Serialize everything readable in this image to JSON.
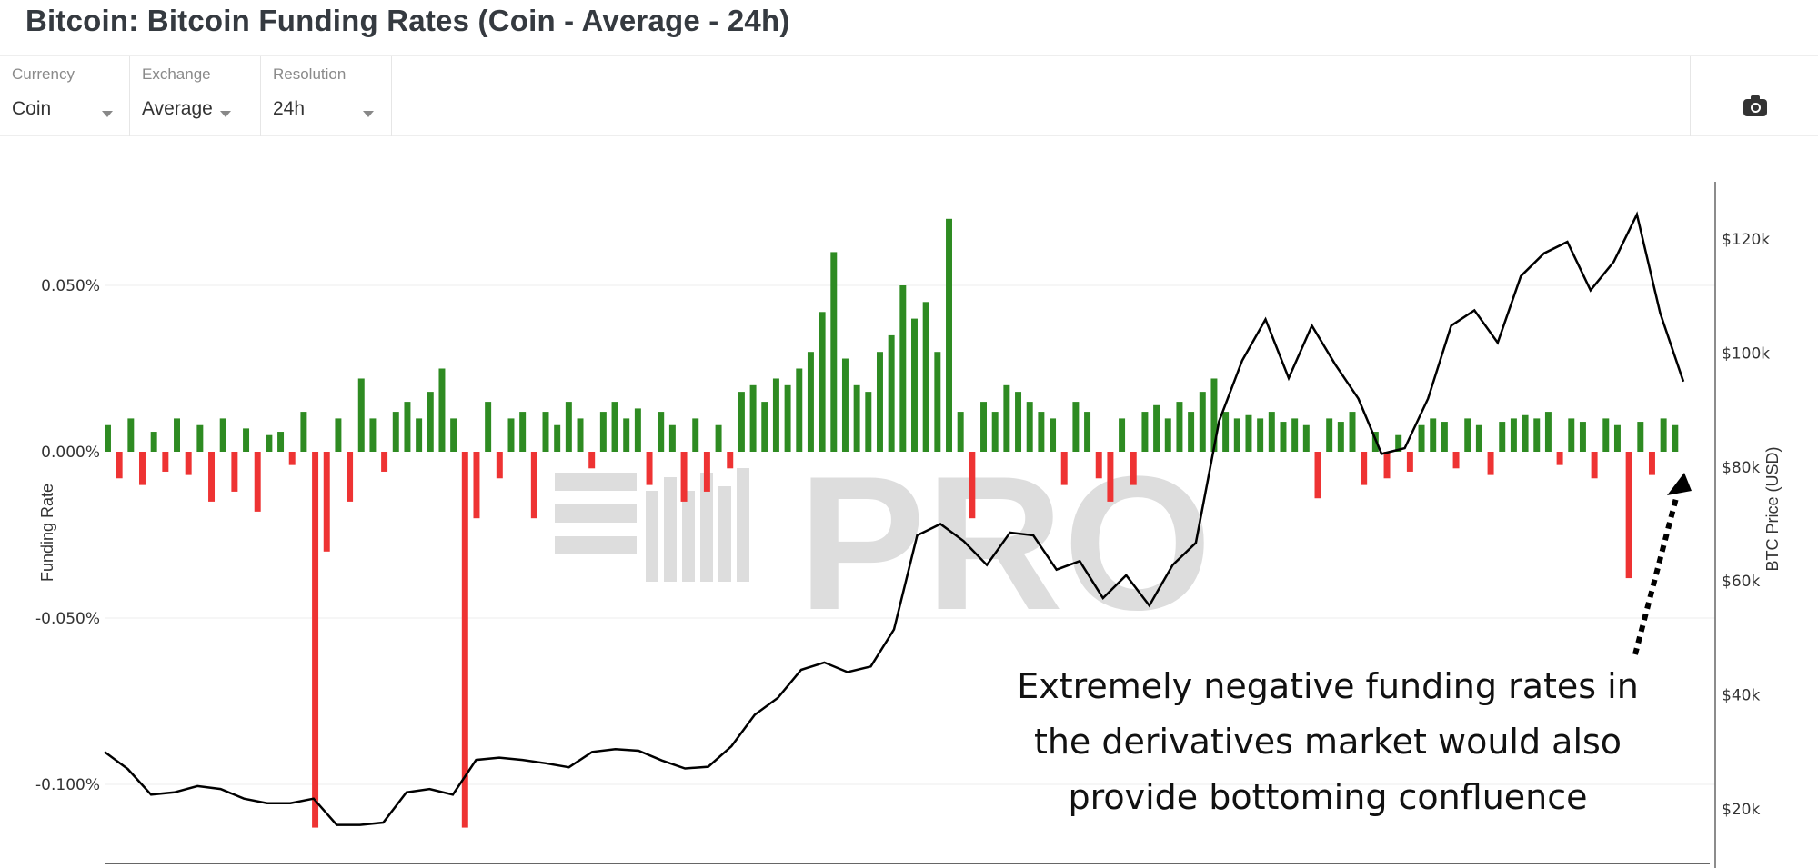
{
  "header": {
    "title": "Bitcoin: Bitcoin Funding Rates (Coin - Average - 24h)"
  },
  "controls": [
    {
      "label": "Currency",
      "value": "Coin"
    },
    {
      "label": "Exchange",
      "value": "Average"
    },
    {
      "label": "Resolution",
      "value": "24h"
    }
  ],
  "toolbar": {
    "screenshot_icon": "camera-icon"
  },
  "watermark": "PRO",
  "annotation": {
    "lines": [
      "Extremely negative funding rates in",
      "the derivatives market would also",
      "provide bottoming confluence"
    ]
  },
  "chart_data": {
    "type": "bar+line",
    "colors": {
      "positive": "#2e8b22",
      "negative": "#ee3333",
      "price": "#000000"
    },
    "left_axis": {
      "label": "Funding Rate",
      "ticks": [
        "0.050%",
        "0.000%",
        "-0.050%",
        "-0.100%"
      ],
      "tick_values": [
        0.05,
        0,
        -0.05,
        -0.1
      ],
      "range": [
        -0.12,
        0.075
      ]
    },
    "right_axis": {
      "label": "BTC Price (USD)",
      "ticks": [
        "$20k",
        "$40k",
        "$60k",
        "$80k",
        "$100k",
        "$120k"
      ],
      "tick_values": [
        20,
        40,
        60,
        80,
        100,
        120
      ],
      "range": [
        7,
        128
      ]
    },
    "grid": true,
    "series": [
      {
        "type": "bar",
        "unit": "%",
        "values": [
          0.008,
          -0.008,
          0.01,
          -0.01,
          0.006,
          -0.006,
          0.01,
          -0.007,
          0.008,
          -0.015,
          0.01,
          -0.012,
          0.007,
          -0.018,
          0.005,
          0.006,
          -0.004,
          0.012,
          -0.113,
          -0.03,
          0.01,
          -0.015,
          0.022,
          0.01,
          -0.006,
          0.012,
          0.015,
          0.01,
          0.018,
          0.025,
          0.01,
          -0.113,
          -0.02,
          0.015,
          -0.008,
          0.01,
          0.012,
          -0.02,
          0.012,
          0.008,
          0.015,
          0.01,
          -0.005,
          0.012,
          0.015,
          0.01,
          0.013,
          -0.01,
          0.012,
          0.008,
          -0.015,
          0.01,
          -0.012,
          0.008,
          -0.005,
          0.018,
          0.02,
          0.015,
          0.022,
          0.02,
          0.025,
          0.03,
          0.042,
          0.06,
          0.028,
          0.02,
          0.018,
          0.03,
          0.035,
          0.05,
          0.04,
          0.045,
          0.03,
          0.07,
          0.012,
          -0.02,
          0.015,
          0.012,
          0.02,
          0.018,
          0.015,
          0.012,
          0.01,
          -0.01,
          0.015,
          0.012,
          -0.008,
          -0.015,
          0.01,
          -0.01,
          0.012,
          0.014,
          0.01,
          0.015,
          0.012,
          0.018,
          0.022,
          0.012,
          0.01,
          0.011,
          0.01,
          0.012,
          0.009,
          0.01,
          0.008,
          -0.014,
          0.01,
          0.009,
          0.012,
          -0.01,
          0.006,
          -0.008,
          0.005,
          -0.006,
          0.008,
          0.01,
          0.009,
          -0.005,
          0.01,
          0.008,
          -0.007,
          0.009,
          0.01,
          0.011,
          0.01,
          0.012,
          -0.004,
          0.01,
          0.009,
          -0.008,
          0.01,
          0.008,
          -0.038,
          0.009,
          -0.007,
          0.01,
          0.008
        ]
      },
      {
        "type": "line",
        "unit": "USD k",
        "values": [
          30,
          27,
          22.5,
          22.9,
          24,
          23.5,
          21.8,
          21,
          21,
          21.8,
          17.2,
          17.2,
          17.6,
          22.9,
          23.5,
          22.5,
          28.6,
          29,
          28.6,
          28,
          27.3,
          30,
          30.5,
          30.2,
          28.5,
          27.1,
          27.4,
          31,
          36.5,
          39.5,
          44.4,
          45.7,
          44,
          45,
          51.5,
          68,
          70,
          67,
          62.8,
          68.5,
          68,
          62,
          63.5,
          57,
          61,
          55.7,
          62.8,
          66.7,
          88,
          98.7,
          105.9,
          95.6,
          104.8,
          98,
          92,
          82.3,
          83.3,
          92,
          104.8,
          107.5,
          101.8,
          113.5,
          117.5,
          119.5,
          111,
          116,
          124.3,
          107,
          95
        ]
      }
    ]
  }
}
